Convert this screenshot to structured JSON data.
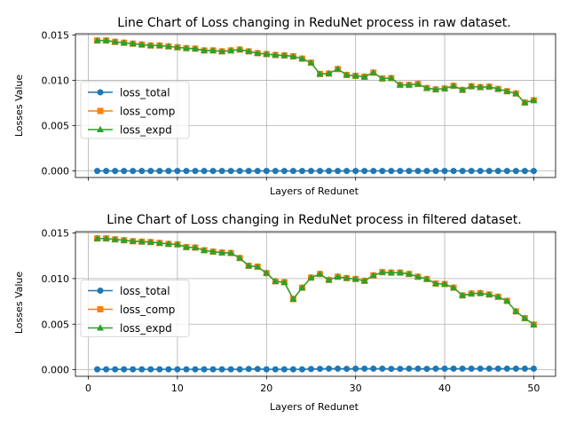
{
  "chart_data": [
    {
      "type": "line",
      "title": "Line Chart of Loss changing in ReduNet process in raw dataset.",
      "xlabel": "Layers of Redunet",
      "ylabel": "Losses Value",
      "xlim": [
        -1.45,
        52.45
      ],
      "ylim": [
        -0.00072,
        0.01515
      ],
      "xticks": [
        0,
        10,
        20,
        30,
        40,
        50
      ],
      "show_xtick_labels": false,
      "yticks": [
        0.0,
        0.005,
        0.01,
        0.015
      ],
      "ytick_labels": [
        "0.000",
        "0.005",
        "0.010",
        "0.015"
      ],
      "grid": true,
      "legend_position": "center-left",
      "x": [
        1,
        2,
        3,
        4,
        5,
        6,
        7,
        8,
        9,
        10,
        11,
        12,
        13,
        14,
        15,
        16,
        17,
        18,
        19,
        20,
        21,
        22,
        23,
        24,
        25,
        26,
        27,
        28,
        29,
        30,
        31,
        32,
        33,
        34,
        35,
        36,
        37,
        38,
        39,
        40,
        41,
        42,
        43,
        44,
        45,
        46,
        47,
        48,
        49,
        50
      ],
      "series": [
        {
          "name": "loss_total",
          "color": "#1f77b4",
          "marker": "circle",
          "values": [
            0,
            0,
            0,
            0,
            0,
            0,
            0,
            0,
            0,
            0,
            0,
            0,
            0,
            0,
            0,
            0,
            0,
            0,
            0,
            0,
            0,
            0,
            0,
            0,
            0,
            0,
            0,
            0,
            0,
            0,
            0,
            0,
            0,
            0,
            0,
            0,
            0,
            0,
            0,
            0,
            0,
            0,
            0,
            0,
            0,
            0,
            0,
            0,
            0,
            0
          ]
        },
        {
          "name": "loss_comp",
          "color": "#ff7f0e",
          "marker": "square",
          "values": [
            0.0144,
            0.0144,
            0.01425,
            0.01415,
            0.01405,
            0.01395,
            0.01385,
            0.01385,
            0.01375,
            0.01365,
            0.01355,
            0.0135,
            0.0133,
            0.0133,
            0.0132,
            0.0133,
            0.0134,
            0.0132,
            0.013,
            0.0129,
            0.0128,
            0.01275,
            0.01265,
            0.0124,
            0.01195,
            0.0107,
            0.01075,
            0.01125,
            0.0106,
            0.0105,
            0.0104,
            0.01085,
            0.0102,
            0.01025,
            0.0095,
            0.0095,
            0.0096,
            0.00915,
            0.009,
            0.0091,
            0.0094,
            0.00895,
            0.00935,
            0.00925,
            0.0093,
            0.00905,
            0.0088,
            0.00855,
            0.00755,
            0.0078
          ]
        },
        {
          "name": "loss_expd",
          "color": "#2ca02c",
          "marker": "triangle",
          "values": [
            0.0144,
            0.0144,
            0.01425,
            0.01415,
            0.01405,
            0.01395,
            0.01385,
            0.01385,
            0.01375,
            0.01365,
            0.01355,
            0.0135,
            0.0133,
            0.0133,
            0.0132,
            0.0133,
            0.0134,
            0.0132,
            0.013,
            0.0129,
            0.0128,
            0.01275,
            0.01265,
            0.0124,
            0.01195,
            0.0107,
            0.01075,
            0.01125,
            0.0106,
            0.0105,
            0.0104,
            0.01085,
            0.0102,
            0.01025,
            0.0095,
            0.0095,
            0.0096,
            0.00915,
            0.009,
            0.0091,
            0.0094,
            0.00895,
            0.00935,
            0.00925,
            0.0093,
            0.00905,
            0.0088,
            0.00855,
            0.00755,
            0.0078
          ]
        }
      ]
    },
    {
      "type": "line",
      "title": "Line Chart of Loss changing in ReduNet process in filtered dataset.",
      "xlabel": "Layers of Redunet",
      "ylabel": "Losses Value",
      "xlim": [
        -1.45,
        52.45
      ],
      "ylim": [
        -0.00072,
        0.01515
      ],
      "xticks": [
        0,
        10,
        20,
        30,
        40,
        50
      ],
      "show_xtick_labels": true,
      "yticks": [
        0.0,
        0.005,
        0.01,
        0.015
      ],
      "ytick_labels": [
        "0.000",
        "0.005",
        "0.010",
        "0.015"
      ],
      "grid": true,
      "legend_position": "center-left",
      "x": [
        1,
        2,
        3,
        4,
        5,
        6,
        7,
        8,
        9,
        10,
        11,
        12,
        13,
        14,
        15,
        16,
        17,
        18,
        19,
        20,
        21,
        22,
        23,
        24,
        25,
        26,
        27,
        28,
        29,
        30,
        31,
        32,
        33,
        34,
        35,
        36,
        37,
        38,
        39,
        40,
        41,
        42,
        43,
        44,
        45,
        46,
        47,
        48,
        49,
        50
      ],
      "series": [
        {
          "name": "loss_total",
          "color": "#1f77b4",
          "marker": "circle",
          "values": [
            5e-05,
            5e-05,
            5e-05,
            5e-05,
            5e-05,
            5e-05,
            5e-05,
            5e-05,
            5e-05,
            5e-05,
            5e-05,
            5e-05,
            5e-05,
            5e-05,
            5e-05,
            5e-05,
            5e-05,
            8e-05,
            8e-05,
            5e-05,
            5e-05,
            5e-05,
            5e-05,
            5e-05,
            8e-05,
            0.0001,
            0.00012,
            0.00012,
            0.0001,
            0.00012,
            0.00012,
            0.00012,
            0.00012,
            0.0001,
            0.0001,
            0.00012,
            0.00012,
            0.0001,
            0.00012,
            0.00012,
            0.00012,
            0.00012,
            0.00012,
            0.00012,
            0.00012,
            0.00012,
            0.00012,
            0.00012,
            0.00012,
            0.00012
          ]
        },
        {
          "name": "loss_comp",
          "color": "#ff7f0e",
          "marker": "square",
          "values": [
            0.0144,
            0.0144,
            0.0143,
            0.0142,
            0.0141,
            0.01405,
            0.014,
            0.0139,
            0.0138,
            0.01375,
            0.01345,
            0.0134,
            0.0131,
            0.01295,
            0.01285,
            0.0128,
            0.01225,
            0.0114,
            0.0113,
            0.0106,
            0.0097,
            0.0096,
            0.00775,
            0.009,
            0.0101,
            0.0105,
            0.00985,
            0.0102,
            0.01005,
            0.00995,
            0.00975,
            0.01035,
            0.0107,
            0.01065,
            0.01065,
            0.0105,
            0.0102,
            0.00995,
            0.00945,
            0.0094,
            0.009,
            0.00815,
            0.00835,
            0.0084,
            0.00825,
            0.008,
            0.00755,
            0.0064,
            0.00565,
            0.00495
          ]
        },
        {
          "name": "loss_expd",
          "color": "#2ca02c",
          "marker": "triangle",
          "values": [
            0.0144,
            0.0144,
            0.0143,
            0.0142,
            0.0141,
            0.01405,
            0.014,
            0.0139,
            0.0138,
            0.01375,
            0.01345,
            0.0134,
            0.0131,
            0.01295,
            0.01285,
            0.0128,
            0.01225,
            0.0114,
            0.0113,
            0.0106,
            0.0097,
            0.0096,
            0.00775,
            0.009,
            0.0101,
            0.0105,
            0.00985,
            0.0102,
            0.01005,
            0.00995,
            0.00975,
            0.01035,
            0.0107,
            0.01065,
            0.01065,
            0.0105,
            0.0102,
            0.00995,
            0.00945,
            0.0094,
            0.009,
            0.00815,
            0.00835,
            0.0084,
            0.00825,
            0.008,
            0.00755,
            0.0064,
            0.00565,
            0.00495
          ]
        }
      ]
    }
  ]
}
